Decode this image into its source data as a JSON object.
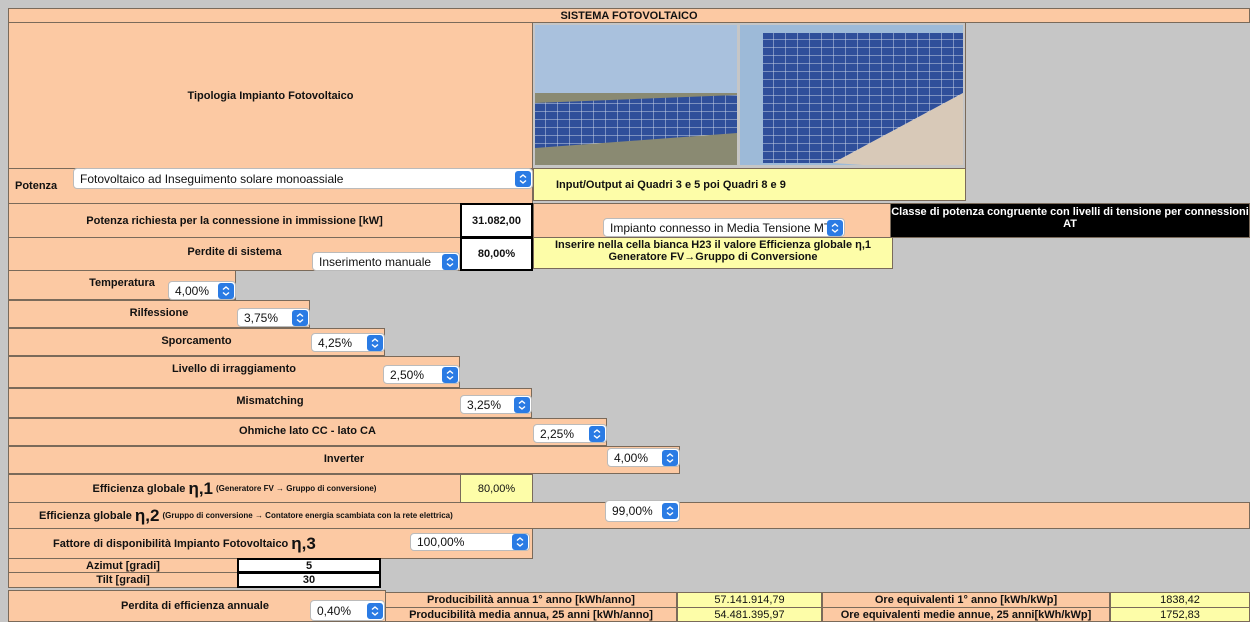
{
  "header": {
    "title": "SISTEMA FOTOVOLTAICO"
  },
  "tipologia": {
    "label": "Tipologia Impianto Fotovoltaico",
    "select": "Fotovoltaico ad Inseguimento solare monoassiale",
    "potenza_label": "Potenza",
    "note": "Input/Output ai Quadri 3 e 5 poi Quadri 8 e 9"
  },
  "connessione": {
    "label": "Potenza richiesta per la connessione in immissione [kW]",
    "value": "31.082,00",
    "select": "Impianto connesso in Media Tensione MT",
    "warning": "Classe di potenza congruente con livelli di tensione per connessioni AT"
  },
  "perdite": {
    "label": "Perdite di sistema",
    "select": "Inserimento manuale",
    "value": "80,00%",
    "note_line1": "Inserire nella cella bianca H23 il valore Efficienza globale η,1",
    "note_line2": "Generatore FV→Gruppo di Conversione"
  },
  "losses": [
    {
      "label": "Temperatura",
      "value": "4,00%"
    },
    {
      "label": "Rilfessione",
      "value": "3,75%"
    },
    {
      "label": "Sporcamento",
      "value": "4,25%"
    },
    {
      "label": "Livello di irraggiamento",
      "value": "2,50%"
    },
    {
      "label": "Mismatching",
      "value": "3,25%"
    },
    {
      "label": "Ohmiche lato CC - lato CA",
      "value": "2,25%"
    },
    {
      "label": "Inverter",
      "value": "4,00%"
    }
  ],
  "eta1": {
    "label": "Efficienza globale",
    "symbol": "η,1",
    "note": "(Generatore FV → Gruppo di conversione)",
    "value": "80,00%"
  },
  "eta2": {
    "label": "Efficienza globale",
    "symbol": "η,2",
    "note": "(Gruppo di conversione → Contatore energia scambiata con la rete elettrica)",
    "value": "99,00%"
  },
  "eta3": {
    "label": "Fattore di disponibilità Impianto Fotovoltaico",
    "symbol": "η,3",
    "value": "100,00%"
  },
  "azimut": {
    "label": "Azimut [gradi]",
    "value": "5"
  },
  "tilt": {
    "label": "Tilt [gradi]",
    "value": "30"
  },
  "annual": {
    "label": "Perdita di efficienza annuale",
    "value": "0,40%"
  },
  "results": [
    [
      "Producibilità annua 1° anno [kWh/anno]",
      "57.141.914,79",
      "Ore equivalenti 1° anno [kWh/kWp]",
      "1838,42"
    ],
    [
      "Producibilità media annua, 25 anni [kWh/anno]",
      "54.481.395,97",
      "Ore equivalenti medie annue, 25 anni[kWh/kWp]",
      "1752,83"
    ]
  ]
}
